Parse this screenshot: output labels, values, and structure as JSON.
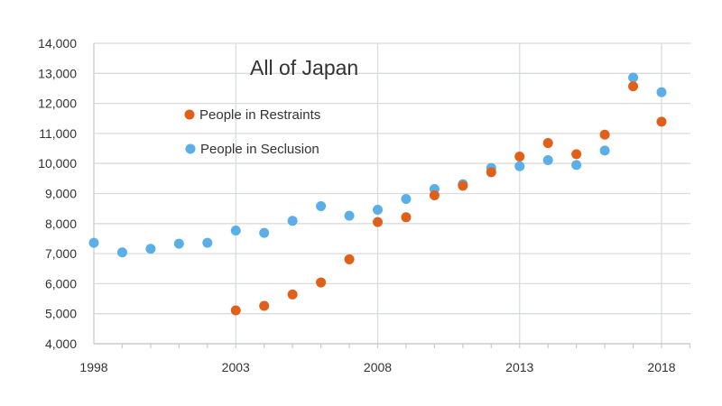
{
  "chart_data": {
    "type": "scatter",
    "title": "All of Japan",
    "xlabel": "",
    "ylabel": "",
    "xlim": [
      1998,
      2019
    ],
    "ylim": [
      4000,
      14000
    ],
    "grid": true,
    "legend_position": "top-left-inside",
    "x_ticks": [
      1998,
      2003,
      2008,
      2013,
      2018
    ],
    "x_tick_labels": [
      "1998",
      "2003",
      "2008",
      "2013",
      "2018"
    ],
    "y_ticks": [
      4000,
      5000,
      6000,
      7000,
      8000,
      9000,
      10000,
      11000,
      12000,
      13000,
      14000
    ],
    "y_tick_labels": [
      "4,000",
      "5,000",
      "6,000",
      "7,000",
      "8,000",
      "9,000",
      "10,000",
      "11,000",
      "12,000",
      "13,000",
      "14,000"
    ],
    "series": [
      {
        "name": "People in Restraints",
        "color": "#E0601A",
        "x": [
          2003,
          2004,
          2005,
          2006,
          2007,
          2008,
          2009,
          2010,
          2011,
          2012,
          2013,
          2014,
          2015,
          2016,
          2017,
          2018
        ],
        "values": [
          5110,
          5260,
          5640,
          6040,
          6810,
          8050,
          8210,
          8940,
          9260,
          9710,
          10230,
          10680,
          10310,
          10960,
          12570,
          11390
        ]
      },
      {
        "name": "People in Seclusion",
        "color": "#5AAFE6",
        "x": [
          1998,
          1999,
          2000,
          2001,
          2002,
          2003,
          2004,
          2005,
          2006,
          2007,
          2008,
          2009,
          2010,
          2011,
          2012,
          2013,
          2014,
          2015,
          2016,
          2017,
          2018
        ],
        "values": [
          7360,
          7040,
          7160,
          7330,
          7360,
          7770,
          7690,
          8090,
          8580,
          8260,
          8460,
          8820,
          9150,
          9310,
          9850,
          9910,
          10110,
          9950,
          10430,
          12860,
          12370
        ]
      }
    ]
  }
}
